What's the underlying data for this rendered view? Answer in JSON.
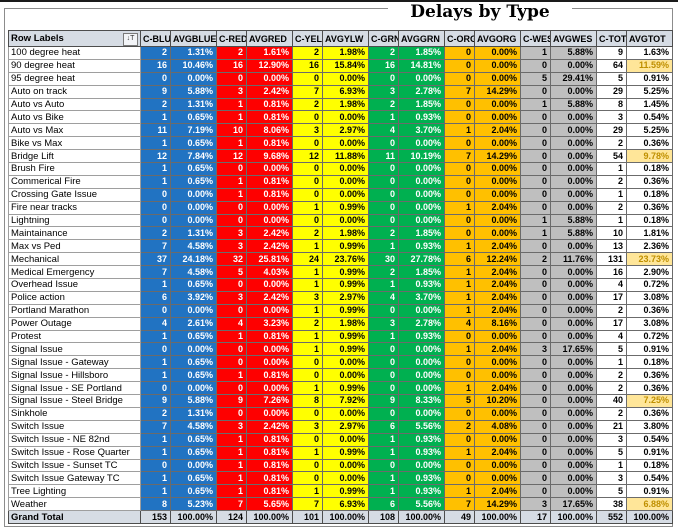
{
  "title": "Delays by Type",
  "colors": {
    "blue": "#2173C2",
    "red": "#FE0000",
    "yellow": "#FFFF00",
    "green": "#00B050",
    "orange": "#FFC000",
    "gray_wes": "#BFBFBF",
    "header_bg": "#D6DCE4",
    "highlight_bg": "#FFE699",
    "highlight_text": "#BF8F00"
  },
  "table": {
    "row_label_header": "Row Labels",
    "filter_icon_glyph": "↓T",
    "columns": [
      "C-BLUE",
      "AVGBLUE",
      "C-RED",
      "AVGRED",
      "C-YEL",
      "AVGYLW",
      "C-GRN",
      "AVGGRN",
      "C-ORG",
      "AVGORG",
      "C-WES",
      "AVGWES",
      "C-TOT",
      "AVGTOT"
    ],
    "rows": [
      {
        "label": "100 degree heat",
        "hl": false,
        "values": [
          "2",
          "1.31%",
          "2",
          "1.61%",
          "2",
          "1.98%",
          "2",
          "1.85%",
          "0",
          "0.00%",
          "1",
          "5.88%",
          "9",
          "1.63%"
        ]
      },
      {
        "label": "90 degree heat",
        "hl": true,
        "values": [
          "16",
          "10.46%",
          "16",
          "12.90%",
          "16",
          "15.84%",
          "16",
          "14.81%",
          "0",
          "0.00%",
          "0",
          "0.00%",
          "64",
          "11.59%"
        ]
      },
      {
        "label": "95 degree heat",
        "hl": false,
        "values": [
          "0",
          "0.00%",
          "0",
          "0.00%",
          "0",
          "0.00%",
          "0",
          "0.00%",
          "0",
          "0.00%",
          "5",
          "29.41%",
          "5",
          "0.91%"
        ]
      },
      {
        "label": "Auto on track",
        "hl": false,
        "values": [
          "9",
          "5.88%",
          "3",
          "2.42%",
          "7",
          "6.93%",
          "3",
          "2.78%",
          "7",
          "14.29%",
          "0",
          "0.00%",
          "29",
          "5.25%"
        ]
      },
      {
        "label": "Auto vs Auto",
        "hl": false,
        "values": [
          "2",
          "1.31%",
          "1",
          "0.81%",
          "2",
          "1.98%",
          "2",
          "1.85%",
          "0",
          "0.00%",
          "1",
          "5.88%",
          "8",
          "1.45%"
        ]
      },
      {
        "label": "Auto vs Bike",
        "hl": false,
        "values": [
          "1",
          "0.65%",
          "1",
          "0.81%",
          "0",
          "0.00%",
          "1",
          "0.93%",
          "0",
          "0.00%",
          "0",
          "0.00%",
          "3",
          "0.54%"
        ]
      },
      {
        "label": "Auto vs Max",
        "hl": false,
        "values": [
          "11",
          "7.19%",
          "10",
          "8.06%",
          "3",
          "2.97%",
          "4",
          "3.70%",
          "1",
          "2.04%",
          "0",
          "0.00%",
          "29",
          "5.25%"
        ]
      },
      {
        "label": "Bike vs Max",
        "hl": false,
        "values": [
          "1",
          "0.65%",
          "1",
          "0.81%",
          "0",
          "0.00%",
          "0",
          "0.00%",
          "0",
          "0.00%",
          "0",
          "0.00%",
          "2",
          "0.36%"
        ]
      },
      {
        "label": "Bridge Lift",
        "hl": true,
        "values": [
          "12",
          "7.84%",
          "12",
          "9.68%",
          "12",
          "11.88%",
          "11",
          "10.19%",
          "7",
          "14.29%",
          "0",
          "0.00%",
          "54",
          "9.78%"
        ]
      },
      {
        "label": "Brush Fire",
        "hl": false,
        "values": [
          "1",
          "0.65%",
          "0",
          "0.00%",
          "0",
          "0.00%",
          "0",
          "0.00%",
          "0",
          "0.00%",
          "0",
          "0.00%",
          "1",
          "0.18%"
        ]
      },
      {
        "label": "Commerical Fire",
        "hl": false,
        "values": [
          "1",
          "0.65%",
          "1",
          "0.81%",
          "0",
          "0.00%",
          "0",
          "0.00%",
          "0",
          "0.00%",
          "0",
          "0.00%",
          "2",
          "0.36%"
        ]
      },
      {
        "label": "Crossing Gate Issue",
        "hl": false,
        "values": [
          "0",
          "0.00%",
          "1",
          "0.81%",
          "0",
          "0.00%",
          "0",
          "0.00%",
          "0",
          "0.00%",
          "0",
          "0.00%",
          "1",
          "0.18%"
        ]
      },
      {
        "label": "Fire near tracks",
        "hl": false,
        "values": [
          "0",
          "0.00%",
          "0",
          "0.00%",
          "1",
          "0.99%",
          "0",
          "0.00%",
          "1",
          "2.04%",
          "0",
          "0.00%",
          "2",
          "0.36%"
        ]
      },
      {
        "label": "Lightning",
        "hl": false,
        "values": [
          "0",
          "0.00%",
          "0",
          "0.00%",
          "0",
          "0.00%",
          "0",
          "0.00%",
          "0",
          "0.00%",
          "1",
          "5.88%",
          "1",
          "0.18%"
        ]
      },
      {
        "label": "Maintainance",
        "hl": false,
        "values": [
          "2",
          "1.31%",
          "3",
          "2.42%",
          "2",
          "1.98%",
          "2",
          "1.85%",
          "0",
          "0.00%",
          "1",
          "5.88%",
          "10",
          "1.81%"
        ]
      },
      {
        "label": "Max vs Ped",
        "hl": false,
        "values": [
          "7",
          "4.58%",
          "3",
          "2.42%",
          "1",
          "0.99%",
          "1",
          "0.93%",
          "1",
          "2.04%",
          "0",
          "0.00%",
          "13",
          "2.36%"
        ]
      },
      {
        "label": "Mechanical",
        "hl": true,
        "values": [
          "37",
          "24.18%",
          "32",
          "25.81%",
          "24",
          "23.76%",
          "30",
          "27.78%",
          "6",
          "12.24%",
          "2",
          "11.76%",
          "131",
          "23.73%"
        ]
      },
      {
        "label": "Medical Emergency",
        "hl": false,
        "values": [
          "7",
          "4.58%",
          "5",
          "4.03%",
          "1",
          "0.99%",
          "2",
          "1.85%",
          "1",
          "2.04%",
          "0",
          "0.00%",
          "16",
          "2.90%"
        ]
      },
      {
        "label": "Overhead Issue",
        "hl": false,
        "values": [
          "1",
          "0.65%",
          "0",
          "0.00%",
          "1",
          "0.99%",
          "1",
          "0.93%",
          "1",
          "2.04%",
          "0",
          "0.00%",
          "4",
          "0.72%"
        ]
      },
      {
        "label": "Police action",
        "hl": false,
        "values": [
          "6",
          "3.92%",
          "3",
          "2.42%",
          "3",
          "2.97%",
          "4",
          "3.70%",
          "1",
          "2.04%",
          "0",
          "0.00%",
          "17",
          "3.08%"
        ]
      },
      {
        "label": "Portland Marathon",
        "hl": false,
        "values": [
          "0",
          "0.00%",
          "0",
          "0.00%",
          "1",
          "0.99%",
          "0",
          "0.00%",
          "1",
          "2.04%",
          "0",
          "0.00%",
          "2",
          "0.36%"
        ]
      },
      {
        "label": "Power Outage",
        "hl": false,
        "values": [
          "4",
          "2.61%",
          "4",
          "3.23%",
          "2",
          "1.98%",
          "3",
          "2.78%",
          "4",
          "8.16%",
          "0",
          "0.00%",
          "17",
          "3.08%"
        ]
      },
      {
        "label": "Protest",
        "hl": false,
        "values": [
          "1",
          "0.65%",
          "1",
          "0.81%",
          "1",
          "0.99%",
          "1",
          "0.93%",
          "0",
          "0.00%",
          "0",
          "0.00%",
          "4",
          "0.72%"
        ]
      },
      {
        "label": "Signal Issue",
        "hl": false,
        "values": [
          "0",
          "0.00%",
          "0",
          "0.00%",
          "1",
          "0.99%",
          "0",
          "0.00%",
          "1",
          "2.04%",
          "3",
          "17.65%",
          "5",
          "0.91%"
        ]
      },
      {
        "label": "Signal Issue - Gateway",
        "hl": false,
        "values": [
          "1",
          "0.65%",
          "0",
          "0.00%",
          "0",
          "0.00%",
          "0",
          "0.00%",
          "0",
          "0.00%",
          "0",
          "0.00%",
          "1",
          "0.18%"
        ]
      },
      {
        "label": "Signal Issue - Hillsboro",
        "hl": false,
        "values": [
          "1",
          "0.65%",
          "1",
          "0.81%",
          "0",
          "0.00%",
          "0",
          "0.00%",
          "0",
          "0.00%",
          "0",
          "0.00%",
          "2",
          "0.36%"
        ]
      },
      {
        "label": "Signal Issue - SE Portland",
        "hl": false,
        "values": [
          "0",
          "0.00%",
          "0",
          "0.00%",
          "1",
          "0.99%",
          "0",
          "0.00%",
          "1",
          "2.04%",
          "0",
          "0.00%",
          "2",
          "0.36%"
        ]
      },
      {
        "label": "Signal Issue - Steel Bridge",
        "hl": true,
        "values": [
          "9",
          "5.88%",
          "9",
          "7.26%",
          "8",
          "7.92%",
          "9",
          "8.33%",
          "5",
          "10.20%",
          "0",
          "0.00%",
          "40",
          "7.25%"
        ]
      },
      {
        "label": "Sinkhole",
        "hl": false,
        "values": [
          "2",
          "1.31%",
          "0",
          "0.00%",
          "0",
          "0.00%",
          "0",
          "0.00%",
          "0",
          "0.00%",
          "0",
          "0.00%",
          "2",
          "0.36%"
        ]
      },
      {
        "label": "Switch Issue",
        "hl": false,
        "values": [
          "7",
          "4.58%",
          "3",
          "2.42%",
          "3",
          "2.97%",
          "6",
          "5.56%",
          "2",
          "4.08%",
          "0",
          "0.00%",
          "21",
          "3.80%"
        ]
      },
      {
        "label": "Switch Issue - NE 82nd",
        "hl": false,
        "values": [
          "1",
          "0.65%",
          "1",
          "0.81%",
          "0",
          "0.00%",
          "1",
          "0.93%",
          "0",
          "0.00%",
          "0",
          "0.00%",
          "3",
          "0.54%"
        ]
      },
      {
        "label": "Switch Issue - Rose Quarter",
        "hl": false,
        "values": [
          "1",
          "0.65%",
          "1",
          "0.81%",
          "1",
          "0.99%",
          "1",
          "0.93%",
          "1",
          "2.04%",
          "0",
          "0.00%",
          "5",
          "0.91%"
        ]
      },
      {
        "label": "Switch Issue - Sunset TC",
        "hl": false,
        "values": [
          "0",
          "0.00%",
          "1",
          "0.81%",
          "0",
          "0.00%",
          "0",
          "0.00%",
          "0",
          "0.00%",
          "0",
          "0.00%",
          "1",
          "0.18%"
        ]
      },
      {
        "label": "Switch Issue Gateway TC",
        "hl": false,
        "values": [
          "1",
          "0.65%",
          "1",
          "0.81%",
          "0",
          "0.00%",
          "1",
          "0.93%",
          "0",
          "0.00%",
          "0",
          "0.00%",
          "3",
          "0.54%"
        ]
      },
      {
        "label": "Tree Lighting",
        "hl": false,
        "values": [
          "1",
          "0.65%",
          "1",
          "0.81%",
          "1",
          "0.99%",
          "1",
          "0.93%",
          "1",
          "2.04%",
          "0",
          "0.00%",
          "5",
          "0.91%"
        ]
      },
      {
        "label": "Weather",
        "hl": true,
        "values": [
          "8",
          "5.23%",
          "7",
          "5.65%",
          "7",
          "6.93%",
          "6",
          "5.56%",
          "7",
          "14.29%",
          "3",
          "17.65%",
          "38",
          "6.88%"
        ]
      }
    ],
    "grand_total": {
      "label": "Grand Total",
      "values": [
        "153",
        "100.00%",
        "124",
        "100.00%",
        "101",
        "100.00%",
        "108",
        "100.00%",
        "49",
        "100.00%",
        "17",
        "100.00%",
        "552",
        "100.00%"
      ]
    }
  }
}
